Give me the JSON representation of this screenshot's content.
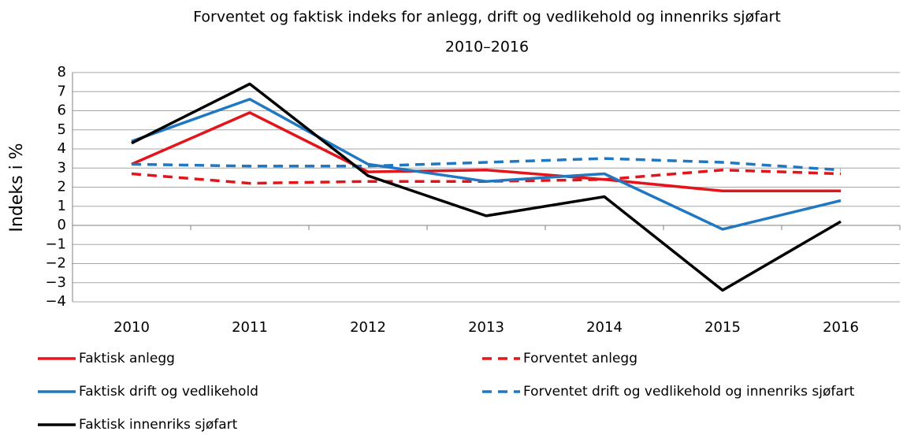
{
  "chart_data": {
    "type": "line",
    "title": "Forventet og faktisk indeks for anlegg, drift og vedlikehold og innenriks sjøfart",
    "subtitle": "2010–2016",
    "y_label": "Indeks i %",
    "categories": [
      "2010",
      "2011",
      "2012",
      "2013",
      "2014",
      "2015",
      "2016"
    ],
    "series": [
      {
        "name": "Faktisk anlegg",
        "color": "#e3151b",
        "dash": false,
        "values": [
          3.2,
          5.9,
          2.8,
          2.9,
          2.4,
          1.8,
          1.8
        ]
      },
      {
        "name": "Forventet anlegg",
        "color": "#e3151b",
        "dash": true,
        "values": [
          2.7,
          2.2,
          2.3,
          2.3,
          2.4,
          2.9,
          2.7
        ]
      },
      {
        "name": "Faktisk drift og vedlikehold",
        "color": "#1f78c1",
        "dash": false,
        "values": [
          4.4,
          6.6,
          3.2,
          2.3,
          2.7,
          -0.2,
          1.3
        ]
      },
      {
        "name": "Forventet drift og vedlikehold og innenriks sjøfart",
        "color": "#1f78c1",
        "dash": true,
        "values": [
          3.2,
          3.1,
          3.1,
          3.3,
          3.5,
          3.3,
          2.9
        ]
      },
      {
        "name": "Faktisk innenriks sjøfart",
        "color": "#000000",
        "dash": false,
        "values": [
          4.3,
          7.4,
          2.6,
          0.5,
          1.5,
          -3.4,
          0.2
        ]
      }
    ],
    "ylim": [
      -4,
      8
    ],
    "yticks": [
      {
        "value": -4,
        "label": "−4"
      },
      {
        "value": -3,
        "label": "−3"
      },
      {
        "value": -2,
        "label": "−2"
      },
      {
        "value": -1,
        "label": "−1"
      },
      0,
      1,
      2,
      3,
      4,
      5,
      6,
      7,
      8
    ],
    "grid": true
  }
}
